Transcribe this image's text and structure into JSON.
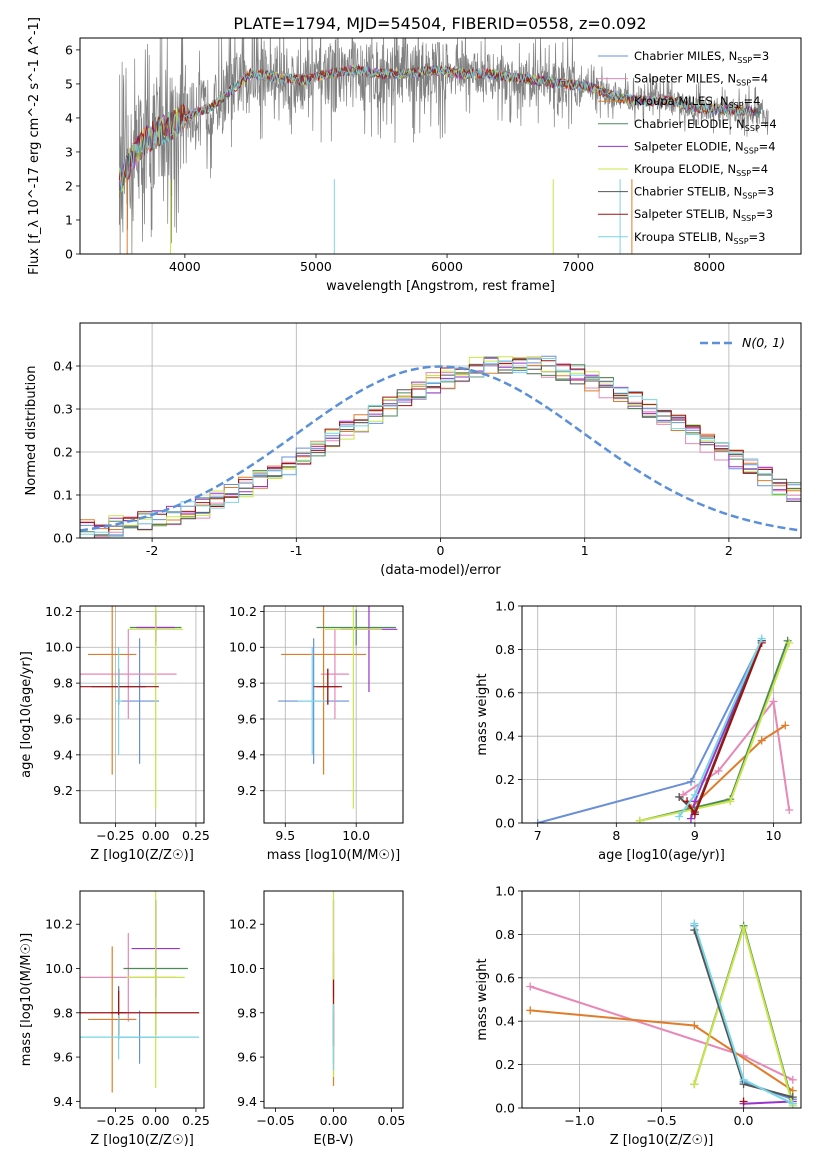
{
  "title": "PLATE=1794, MJD=54504, FIBERID=0558, z=0.092",
  "colors": {
    "Chabrier MILES": "#6a8fd8",
    "Salpeter MILES": "#e887b6",
    "Kroupa MILES": "#e07c2a",
    "Chabrier ELODIE": "#4c8a5a",
    "Salpeter ELODIE": "#9b33c9",
    "Kroupa ELODIE": "#c8e64a",
    "Chabrier STELIB": "#555555",
    "Salpeter STELIB": "#a01010",
    "Kroupa STELIB": "#79d6e6",
    "data": "#808080",
    "normal": "#5b8fd9"
  },
  "legend_entries": [
    "Chabrier MILES, N_SSP=3",
    "Salpeter MILES, N_SSP=4",
    "Kroupa MILES, N_SSP=4",
    "Chabrier ELODIE, N_SSP=4",
    "Salpeter ELODIE, N_SSP=4",
    "Kroupa ELODIE, N_SSP=4",
    "Chabrier STELIB, N_SSP=3",
    "Salpeter STELIB, N_SSP=3",
    "Kroupa STELIB, N_SSP=3"
  ],
  "chart_data": [
    {
      "id": "spectrum",
      "type": "line",
      "xlabel": "wavelength [Angstrom, rest frame]",
      "ylabel": "Flux [f_λ 10^-17 erg cm^-2 s^-1 A^-1]",
      "xlim": [
        3200,
        8700
      ],
      "ylim": [
        0,
        6.35
      ],
      "xticks": [
        4000,
        5000,
        6000,
        7000,
        8000
      ],
      "yticks": [
        0,
        1,
        2,
        3,
        4,
        5,
        6
      ],
      "continuum": {
        "x": [
          3500,
          3560,
          3620,
          3700,
          3800,
          3900,
          4000,
          4100,
          4200,
          4350,
          4500,
          4700,
          4900,
          5100,
          5300,
          5500,
          5700,
          5900,
          6100,
          6300,
          6500,
          6700,
          6900,
          7100,
          7300,
          7500,
          7700,
          7900,
          8100,
          8300,
          8500
        ],
        "y": [
          2.1,
          2.5,
          3.0,
          3.3,
          3.6,
          3.8,
          4.0,
          4.2,
          4.3,
          4.8,
          5.3,
          5.2,
          5.1,
          5.3,
          5.4,
          5.3,
          5.3,
          5.4,
          5.3,
          5.3,
          5.2,
          5.1,
          5.0,
          4.9,
          4.6,
          4.5,
          4.5,
          4.3,
          4.25,
          4.2,
          4.15
        ]
      },
      "series": [
        "Chabrier MILES",
        "Salpeter MILES",
        "Kroupa MILES",
        "Chabrier ELODIE",
        "Salpeter ELODIE",
        "Kroupa ELODIE",
        "Chabrier STELIB",
        "Salpeter STELIB",
        "Kroupa STELIB"
      ],
      "legend": "right"
    },
    {
      "id": "residuals",
      "type": "line",
      "xlabel": "(data-model)/error",
      "ylabel": "Normed distribution",
      "xlim": [
        -2.5,
        2.5
      ],
      "ylim": [
        0,
        0.5
      ],
      "xticks": [
        -2,
        -1,
        0,
        1,
        2
      ],
      "yticks": [
        0.0,
        0.1,
        0.2,
        0.3,
        0.4
      ],
      "bin_edges_start": -2.5,
      "bin_width": 0.1,
      "hist_reference": [
        0.018,
        0.022,
        0.028,
        0.031,
        0.038,
        0.048,
        0.056,
        0.062,
        0.07,
        0.085,
        0.1,
        0.118,
        0.135,
        0.15,
        0.17,
        0.19,
        0.21,
        0.232,
        0.25,
        0.265,
        0.285,
        0.305,
        0.325,
        0.345,
        0.36,
        0.372,
        0.385,
        0.395,
        0.4,
        0.405,
        0.405,
        0.402,
        0.398,
        0.39,
        0.38,
        0.365,
        0.35,
        0.335,
        0.318,
        0.3,
        0.28,
        0.262,
        0.242,
        0.222,
        0.2,
        0.18,
        0.16,
        0.14,
        0.122,
        0.108,
        0.092,
        0.08,
        0.068,
        0.058,
        0.048,
        0.04,
        0.034,
        0.028,
        0.024,
        0.02
      ],
      "normal_label": "N(0, 1)",
      "legend": "top-right"
    },
    {
      "id": "age-vs-Z",
      "type": "scatter",
      "xlabel": "Z [log10(Z/Z☉)]",
      "ylabel": "age [log10(age/yr)]",
      "xlim": [
        -0.47,
        0.3
      ],
      "ylim": [
        9.02,
        10.23
      ],
      "xticks": [
        -0.25,
        0.0,
        0.25
      ],
      "xtick_labels": [
        "−0.25",
        "0.00",
        "0.25"
      ],
      "yticks": [
        9.2,
        9.4,
        9.6,
        9.8,
        10.0,
        10.2
      ],
      "points": [
        {
          "series": "Chabrier MILES",
          "x": -0.1,
          "y": 9.7,
          "xerr": 0.12,
          "yerr": 0.35
        },
        {
          "series": "Salpeter MILES",
          "x": -0.17,
          "y": 9.85,
          "xerr": 0.3,
          "yerr": 0.25
        },
        {
          "series": "Kroupa MILES",
          "x": -0.27,
          "y": 9.96,
          "xerr": 0.15,
          "yerr": 0.67
        },
        {
          "series": "Chabrier ELODIE",
          "x": 0.0,
          "y": 10.11,
          "xerr": 0.16,
          "yerr": 0.1
        },
        {
          "series": "Salpeter ELODIE",
          "x": 0.0,
          "y": 10.11,
          "xerr": 0.12,
          "yerr": 0.08
        },
        {
          "series": "Kroupa ELODIE",
          "x": 0.0,
          "y": 10.1,
          "xerr": 0.17,
          "yerr": 1.0
        },
        {
          "series": "Chabrier STELIB",
          "x": -0.23,
          "y": 9.78,
          "xerr": 0.17,
          "yerr": 0.1
        },
        {
          "series": "Salpeter STELIB",
          "x": -0.23,
          "y": 9.78,
          "xerr": 0.25,
          "yerr": 0.1
        },
        {
          "series": "Kroupa STELIB",
          "x": -0.23,
          "y": 9.7,
          "xerr": 0.02,
          "yerr": 0.3
        }
      ]
    },
    {
      "id": "age-vs-mass",
      "type": "scatter",
      "xlabel": "mass [log10(M/M☉)]",
      "xlim": [
        9.35,
        10.33
      ],
      "ylim": [
        9.02,
        10.23
      ],
      "xticks": [
        9.5,
        10.0
      ],
      "xtick_labels": [
        "9.5",
        "10.0"
      ],
      "yticks": [
        9.2,
        9.4,
        9.6,
        9.8,
        10.0,
        10.2
      ],
      "points": [
        {
          "series": "Chabrier MILES",
          "x": 9.7,
          "y": 9.7,
          "xerr": 0.25,
          "yerr": 0.35
        },
        {
          "series": "Salpeter MILES",
          "x": 9.85,
          "y": 9.85,
          "xerr": 0.1,
          "yerr": 0.25
        },
        {
          "series": "Kroupa MILES",
          "x": 9.77,
          "y": 9.96,
          "xerr": 0.3,
          "yerr": 0.67
        },
        {
          "series": "Chabrier ELODIE",
          "x": 10.0,
          "y": 10.11,
          "xerr": 0.28,
          "yerr": 0.1
        },
        {
          "series": "Salpeter ELODIE",
          "x": 10.09,
          "y": 10.1,
          "xerr": 0.2,
          "yerr": 0.35
        },
        {
          "series": "Kroupa ELODIE",
          "x": 9.98,
          "y": 10.1,
          "xerr": 0.2,
          "yerr": 1.0
        },
        {
          "series": "Chabrier STELIB",
          "x": 9.8,
          "y": 9.78,
          "xerr": 0.08,
          "yerr": 0.1
        },
        {
          "series": "Salpeter STELIB",
          "x": 9.8,
          "y": 9.78,
          "xerr": 0.1,
          "yerr": 0.1
        },
        {
          "series": "Kroupa STELIB",
          "x": 9.69,
          "y": 9.7,
          "xerr": 0.1,
          "yerr": 0.3
        }
      ]
    },
    {
      "id": "weight-vs-age",
      "type": "line",
      "xlabel": "age [log10(age/yr)]",
      "ylabel": "mass weight",
      "xlim": [
        6.8,
        10.35
      ],
      "ylim": [
        0,
        1.0
      ],
      "xticks": [
        7,
        8,
        9,
        10
      ],
      "yticks": [
        0.0,
        0.2,
        0.4,
        0.6,
        0.8,
        1.0
      ],
      "series": [
        {
          "series": "Chabrier MILES",
          "x": [
            7.0,
            8.95,
            9.85
          ],
          "y": [
            0.0,
            0.19,
            0.84
          ]
        },
        {
          "series": "Salpeter MILES",
          "x": [
            8.85,
            9.3,
            10.0,
            10.2
          ],
          "y": [
            0.13,
            0.24,
            0.56,
            0.06
          ]
        },
        {
          "series": "Kroupa MILES",
          "x": [
            8.95,
            9.85,
            10.15
          ],
          "y": [
            0.07,
            0.38,
            0.45
          ]
        },
        {
          "series": "Chabrier ELODIE",
          "x": [
            8.3,
            9.45,
            10.18
          ],
          "y": [
            0.01,
            0.11,
            0.84
          ]
        },
        {
          "series": "Salpeter ELODIE",
          "x": [
            8.95,
            9.0,
            9.85
          ],
          "y": [
            0.02,
            0.1,
            0.84
          ]
        },
        {
          "series": "Kroupa ELODIE",
          "x": [
            8.3,
            9.45,
            10.2
          ],
          "y": [
            0.01,
            0.1,
            0.83
          ]
        },
        {
          "series": "Chabrier STELIB",
          "x": [
            8.8,
            9.0,
            9.85
          ],
          "y": [
            0.12,
            0.05,
            0.84
          ]
        },
        {
          "series": "Salpeter STELIB",
          "x": [
            8.9,
            9.0,
            9.85
          ],
          "y": [
            0.1,
            0.04,
            0.83
          ]
        },
        {
          "series": "Kroupa STELIB",
          "x": [
            8.8,
            9.0,
            9.85
          ],
          "y": [
            0.03,
            0.13,
            0.85
          ]
        }
      ]
    },
    {
      "id": "mass-vs-Z",
      "type": "scatter",
      "xlabel": "Z [log10(Z/Z☉)]",
      "ylabel": "mass [log10(M/M☉)]",
      "xlim": [
        -0.47,
        0.3
      ],
      "ylim": [
        9.37,
        10.35
      ],
      "xticks": [
        -0.25,
        0.0,
        0.25
      ],
      "xtick_labels": [
        "−0.25",
        "0.00",
        "0.25"
      ],
      "yticks": [
        9.4,
        9.6,
        9.8,
        10.0,
        10.2
      ],
      "points": [
        {
          "series": "Chabrier MILES",
          "x": -0.1,
          "y": 9.69,
          "xerr": 0.12,
          "yerr": 0.12
        },
        {
          "series": "Salpeter MILES",
          "x": -0.17,
          "y": 9.96,
          "xerr": 0.3,
          "yerr": 0.2
        },
        {
          "series": "Kroupa MILES",
          "x": -0.27,
          "y": 9.77,
          "xerr": 0.15,
          "yerr": 0.33
        },
        {
          "series": "Chabrier ELODIE",
          "x": 0.0,
          "y": 10.0,
          "xerr": 0.2,
          "yerr": 0.3
        },
        {
          "series": "Salpeter ELODIE",
          "x": 0.0,
          "y": 10.09,
          "xerr": 0.15,
          "yerr": 0.22
        },
        {
          "series": "Kroupa ELODIE",
          "x": 0.0,
          "y": 9.96,
          "xerr": 0.18,
          "yerr": 0.5
        },
        {
          "series": "Chabrier STELIB",
          "x": -0.23,
          "y": 9.8,
          "xerr": 0.05,
          "yerr": 0.12
        },
        {
          "series": "Salpeter STELIB",
          "x": -0.23,
          "y": 9.8,
          "xerr": 0.5,
          "yerr": 0.1
        },
        {
          "series": "Kroupa STELIB",
          "x": -0.23,
          "y": 9.69,
          "xerr": 0.5,
          "yerr": 0.1
        }
      ]
    },
    {
      "id": "mass-vs-ebv",
      "type": "scatter",
      "xlabel": "E(B-V)",
      "xlim": [
        -0.06,
        0.06
      ],
      "ylim": [
        9.37,
        10.35
      ],
      "xticks": [
        -0.05,
        0.0,
        0.05
      ],
      "xtick_labels": [
        "−0.05",
        "0.00",
        "0.05"
      ],
      "yticks": [
        9.4,
        9.6,
        9.8,
        10.0,
        10.2
      ],
      "points": [
        {
          "series": "Chabrier MILES",
          "x": 0.0,
          "y": 9.69,
          "xerr": 0,
          "yerr": 0.12
        },
        {
          "series": "Kroupa MILES",
          "x": 0.0,
          "y": 9.77,
          "xerr": 0,
          "yerr": 0.3
        },
        {
          "series": "Salpeter ELODIE",
          "x": 0.0,
          "y": 10.09,
          "xerr": 0,
          "yerr": 0.22
        },
        {
          "series": "Kroupa ELODIE",
          "x": 0.0,
          "y": 9.96,
          "xerr": 0,
          "yerr": 0.45
        },
        {
          "series": "Salpeter STELIB",
          "x": 0.0,
          "y": 9.8,
          "xerr": 0,
          "yerr": 0.15
        },
        {
          "series": "Kroupa STELIB",
          "x": 0.0,
          "y": 9.69,
          "xerr": 0,
          "yerr": 0.15
        }
      ]
    },
    {
      "id": "weight-vs-Z",
      "type": "line",
      "xlabel": "Z [log10(Z/Z☉)]",
      "ylabel": "mass weight",
      "xlim": [
        -1.35,
        0.35
      ],
      "ylim": [
        0,
        1.0
      ],
      "xticks": [
        -1.0,
        -0.5,
        0.0
      ],
      "xtick_labels": [
        "−1.0",
        "−0.5",
        "0.0"
      ],
      "yticks": [
        0.0,
        0.2,
        0.4,
        0.6,
        0.8,
        1.0
      ],
      "series": [
        {
          "series": "Chabrier MILES",
          "x": [
            -0.3,
            0.0,
            0.3
          ],
          "y": [
            0.84,
            0.12,
            0.04
          ]
        },
        {
          "series": "Salpeter MILES",
          "x": [
            -1.3,
            0.0,
            0.3
          ],
          "y": [
            0.56,
            0.24,
            0.13
          ]
        },
        {
          "series": "Kroupa MILES",
          "x": [
            -1.3,
            -0.3,
            0.3
          ],
          "y": [
            0.45,
            0.38,
            0.08
          ]
        },
        {
          "series": "Chabrier ELODIE",
          "x": [
            -0.3,
            0.0,
            0.3
          ],
          "y": [
            0.11,
            0.84,
            0.02
          ]
        },
        {
          "series": "Salpeter ELODIE",
          "x": [
            0.0,
            0.3
          ],
          "y": [
            0.02,
            0.03
          ]
        },
        {
          "series": "Kroupa ELODIE",
          "x": [
            -0.3,
            0.0,
            0.3
          ],
          "y": [
            0.11,
            0.83,
            0.01
          ]
        },
        {
          "series": "Chabrier STELIB",
          "x": [
            -0.3,
            0.0,
            0.3
          ],
          "y": [
            0.82,
            0.11,
            0.05
          ]
        },
        {
          "series": "Salpeter STELIB",
          "x": [
            0.0
          ],
          "y": [
            0.03
          ]
        },
        {
          "series": "Kroupa STELIB",
          "x": [
            -0.3,
            0.0,
            0.3
          ],
          "y": [
            0.85,
            0.13,
            0.02
          ]
        }
      ]
    }
  ]
}
